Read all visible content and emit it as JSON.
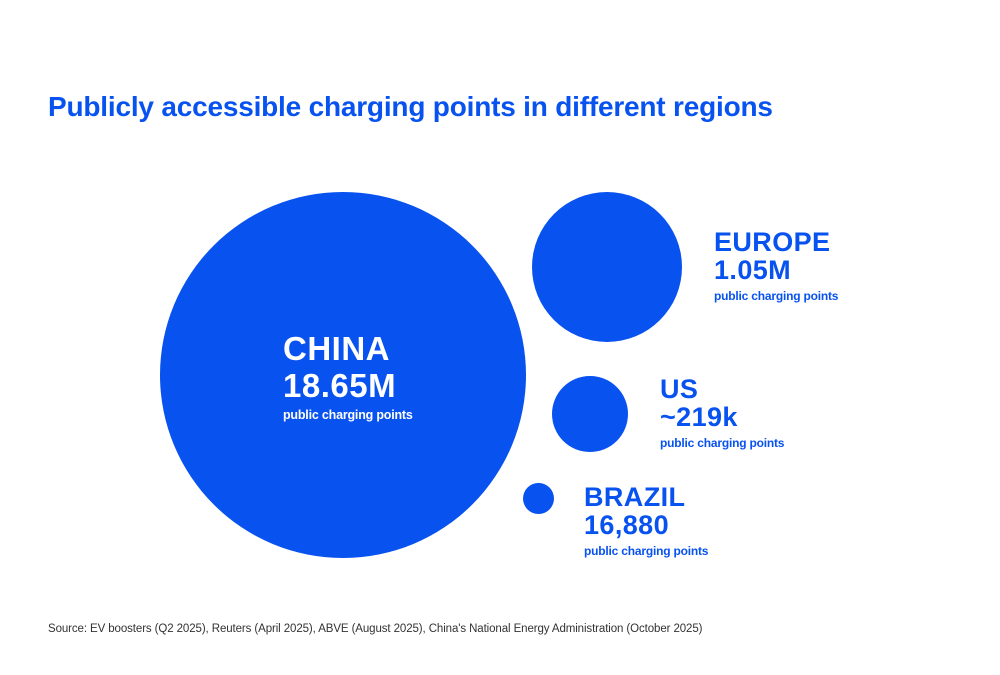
{
  "title": "Publicly accessible charging points in different regions",
  "source": "Source: EV boosters (Q2 2025), Reuters (April 2025), ABVE (August 2025), China's National Energy Administration (October 2025)",
  "colors": {
    "brand_blue": "#0852f0",
    "text_on_bubble": "#ffffff",
    "source_text": "#333333",
    "background": "#ffffff"
  },
  "chart_data": {
    "type": "bubble",
    "title": "Publicly accessible charging points in different regions",
    "unit": "public charging points",
    "legend_position": "none",
    "series": [
      {
        "region": "CHINA",
        "value": 18650000,
        "value_label": "18.65M",
        "sublabel": "public charging points",
        "label_placement": "inside"
      },
      {
        "region": "EUROPE",
        "value": 1050000,
        "value_label": "1.05M",
        "sublabel": "public charging points",
        "label_placement": "right"
      },
      {
        "region": "US",
        "value": 219000,
        "value_label": "~219k",
        "sublabel": "public charging points",
        "label_placement": "right"
      },
      {
        "region": "BRAZIL",
        "value": 16880,
        "value_label": "16,880",
        "sublabel": "public charging points",
        "label_placement": "right"
      }
    ]
  }
}
